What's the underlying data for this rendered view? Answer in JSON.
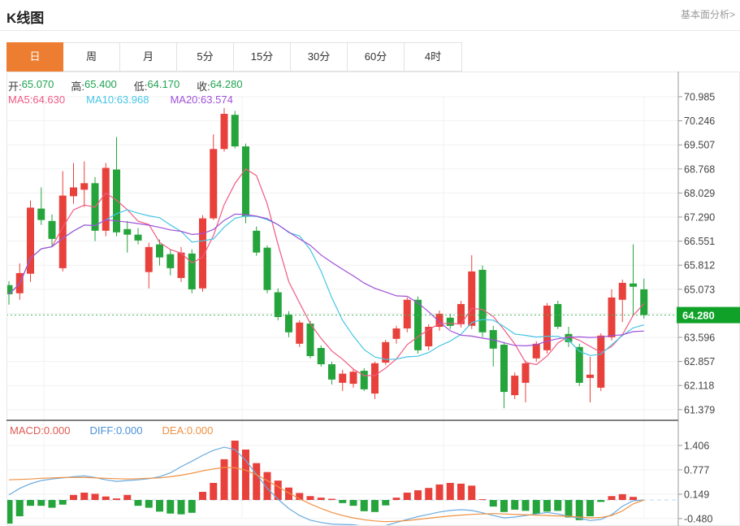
{
  "header": {
    "title": "K线图",
    "link": "基本面分析>"
  },
  "tabs": {
    "items": [
      {
        "name": "day",
        "label": "日",
        "active": true
      },
      {
        "name": "week",
        "label": "周",
        "active": false
      },
      {
        "name": "month",
        "label": "月",
        "active": false
      },
      {
        "name": "5min",
        "label": "5分",
        "active": false
      },
      {
        "name": "15min",
        "label": "15分",
        "active": false
      },
      {
        "name": "30min",
        "label": "30分",
        "active": false
      },
      {
        "name": "60min",
        "label": "60分",
        "active": false
      },
      {
        "name": "4hour",
        "label": "4时",
        "active": false
      }
    ],
    "active_bg": "#ed7d31"
  },
  "legend": {
    "ohlc": [
      {
        "label": "开:",
        "value": "65.070"
      },
      {
        "label": "高:",
        "value": "65.400"
      },
      {
        "label": "低:",
        "value": "64.170"
      },
      {
        "label": "收:",
        "value": "64.280"
      }
    ],
    "ohlc_value_color": "#1fa351",
    "ma": [
      {
        "label": "MA5:",
        "value": "64.630",
        "color": "#f05a82"
      },
      {
        "label": "MA10:",
        "value": "63.968",
        "color": "#45c5e6"
      },
      {
        "label": "MA20:",
        "value": "63.574",
        "color": "#a050d8"
      }
    ],
    "macd": [
      {
        "label": "MACD:",
        "value": "0.000",
        "color": "#e05a52"
      },
      {
        "label": "DIFF:",
        "value": "0.000",
        "color": "#4a90d9"
      },
      {
        "label": "DEA:",
        "value": "0.000",
        "color": "#f09040"
      }
    ]
  },
  "chart_data": {
    "type": "candlestick",
    "convention": "red=up green=down",
    "current_price": "64.280",
    "price_panel": {
      "y_ticks": [
        "70.985",
        "70.246",
        "69.507",
        "68.768",
        "68.029",
        "67.290",
        "66.551",
        "65.812",
        "65.073",
        "",
        "63.596",
        "62.857",
        "62.118",
        "61.379"
      ],
      "y_step": 0.739,
      "ma_periods": [
        5,
        10,
        20
      ],
      "candles_ohlc": [
        [
          65.2,
          65.32,
          64.6,
          64.92
        ],
        [
          64.95,
          65.87,
          64.75,
          65.57
        ],
        [
          65.55,
          67.8,
          65.3,
          67.58
        ],
        [
          67.55,
          68.2,
          67.05,
          67.2
        ],
        [
          67.17,
          67.37,
          66.37,
          66.62
        ],
        [
          65.72,
          68.7,
          65.62,
          67.95
        ],
        [
          67.93,
          68.95,
          67.7,
          68.2
        ],
        [
          68.13,
          69.0,
          67.6,
          68.33
        ],
        [
          68.33,
          68.52,
          66.55,
          66.87
        ],
        [
          66.87,
          68.95,
          66.7,
          68.8
        ],
        [
          68.75,
          69.75,
          66.7,
          66.82
        ],
        [
          66.92,
          67.17,
          66.2,
          66.75
        ],
        [
          66.75,
          66.95,
          66.45,
          66.57
        ],
        [
          65.6,
          66.5,
          65.1,
          66.37
        ],
        [
          66.45,
          66.6,
          65.8,
          66.05
        ],
        [
          66.15,
          66.3,
          65.5,
          65.72
        ],
        [
          65.42,
          66.37,
          65.3,
          66.2
        ],
        [
          66.17,
          66.3,
          64.95,
          65.07
        ],
        [
          65.1,
          67.35,
          65.0,
          67.25
        ],
        [
          67.25,
          69.83,
          67.2,
          69.38
        ],
        [
          69.38,
          70.64,
          69.3,
          70.46
        ],
        [
          70.43,
          70.55,
          69.4,
          69.46
        ],
        [
          69.46,
          69.55,
          67.1,
          67.3
        ],
        [
          66.87,
          67.0,
          66.1,
          66.2
        ],
        [
          66.35,
          66.42,
          64.95,
          65.05
        ],
        [
          64.98,
          65.1,
          64.12,
          64.22
        ],
        [
          64.3,
          64.4,
          63.6,
          63.75
        ],
        [
          63.4,
          64.12,
          63.3,
          64.05
        ],
        [
          64.02,
          64.1,
          62.95,
          63.02
        ],
        [
          63.27,
          63.35,
          62.7,
          62.77
        ],
        [
          62.77,
          62.85,
          62.15,
          62.3
        ],
        [
          62.2,
          62.6,
          61.95,
          62.48
        ],
        [
          62.17,
          62.62,
          62.05,
          62.54
        ],
        [
          62.57,
          62.65,
          61.95,
          62.0
        ],
        [
          61.87,
          62.85,
          61.7,
          62.8
        ],
        [
          62.82,
          63.52,
          62.75,
          63.45
        ],
        [
          63.55,
          63.95,
          63.4,
          63.87
        ],
        [
          63.87,
          64.82,
          63.75,
          64.75
        ],
        [
          64.75,
          64.85,
          63.1,
          63.2
        ],
        [
          63.32,
          64.0,
          63.2,
          63.92
        ],
        [
          63.92,
          64.42,
          63.8,
          64.32
        ],
        [
          64.2,
          64.32,
          63.85,
          63.95
        ],
        [
          64.0,
          64.72,
          63.9,
          64.62
        ],
        [
          63.95,
          66.12,
          63.85,
          65.62
        ],
        [
          65.67,
          65.8,
          63.6,
          63.75
        ],
        [
          63.82,
          63.95,
          62.7,
          63.25
        ],
        [
          63.37,
          63.45,
          61.42,
          61.92
        ],
        [
          61.82,
          62.52,
          61.7,
          62.42
        ],
        [
          62.2,
          62.88,
          61.6,
          62.8
        ],
        [
          62.95,
          63.48,
          62.85,
          63.4
        ],
        [
          63.2,
          64.65,
          63.1,
          64.57
        ],
        [
          64.62,
          64.72,
          63.85,
          63.92
        ],
        [
          63.7,
          63.92,
          63.3,
          63.45
        ],
        [
          63.3,
          63.4,
          62.1,
          62.2
        ],
        [
          62.35,
          63.0,
          61.6,
          62.45
        ],
        [
          62.05,
          63.72,
          61.95,
          63.65
        ],
        [
          63.6,
          65.07,
          63.5,
          64.82
        ],
        [
          64.75,
          65.37,
          64.07,
          65.27
        ],
        [
          65.25,
          66.45,
          64.3,
          65.15
        ],
        [
          65.07,
          65.4,
          64.17,
          64.28
        ]
      ]
    },
    "macd_panel": {
      "y_ticks": [
        "1.406",
        "0.777",
        "0.149",
        "-0.480"
      ],
      "histogram": [
        -0.61,
        -0.42,
        -0.15,
        -0.15,
        -0.2,
        -0.12,
        0.13,
        0.19,
        0.16,
        0.09,
        0.04,
        0.13,
        -0.15,
        -0.2,
        -0.3,
        -0.35,
        -0.37,
        -0.33,
        0.21,
        0.44,
        1.05,
        1.53,
        1.3,
        0.95,
        0.72,
        0.5,
        0.32,
        0.18,
        0.1,
        0.06,
        0.03,
        -0.08,
        -0.15,
        -0.29,
        -0.31,
        -0.14,
        0.06,
        0.19,
        0.25,
        0.31,
        0.4,
        0.44,
        0.42,
        0.37,
        0.02,
        -0.17,
        -0.31,
        -0.25,
        -0.28,
        -0.36,
        -0.3,
        -0.28,
        -0.45,
        -0.52,
        -0.42,
        -0.05,
        0.1,
        0.15,
        0.08,
        0.0
      ],
      "diff": [
        0.13,
        0.3,
        0.42,
        0.5,
        0.54,
        0.57,
        0.6,
        0.62,
        0.58,
        0.52,
        0.48,
        0.5,
        0.52,
        0.55,
        0.6,
        0.7,
        0.86,
        1.0,
        1.15,
        1.28,
        1.36,
        1.3,
        1.02,
        0.66,
        0.3,
        0.02,
        -0.22,
        -0.4,
        -0.52,
        -0.58,
        -0.62,
        -0.63,
        -0.64,
        -0.68,
        -0.72,
        -0.66,
        -0.58,
        -0.5,
        -0.43,
        -0.37,
        -0.31,
        -0.27,
        -0.25,
        -0.27,
        -0.33,
        -0.4,
        -0.46,
        -0.44,
        -0.4,
        -0.36,
        -0.32,
        -0.36,
        -0.42,
        -0.47,
        -0.53,
        -0.5,
        -0.38,
        -0.16,
        -0.02,
        0.0
      ],
      "dea": [
        0.52,
        0.53,
        0.54,
        0.56,
        0.57,
        0.58,
        0.58,
        0.58,
        0.57,
        0.56,
        0.55,
        0.54,
        0.55,
        0.56,
        0.57,
        0.6,
        0.64,
        0.69,
        0.75,
        0.8,
        0.84,
        0.83,
        0.77,
        0.65,
        0.5,
        0.34,
        0.18,
        0.03,
        -0.1,
        -0.22,
        -0.32,
        -0.4,
        -0.46,
        -0.51,
        -0.54,
        -0.56,
        -0.55,
        -0.53,
        -0.5,
        -0.47,
        -0.44,
        -0.41,
        -0.39,
        -0.37,
        -0.36,
        -0.35,
        -0.36,
        -0.37,
        -0.38,
        -0.39,
        -0.4,
        -0.41,
        -0.42,
        -0.44,
        -0.46,
        -0.45,
        -0.4,
        -0.28,
        -0.1,
        0.0
      ]
    },
    "colors": {
      "up": "#e8413c",
      "down": "#25a43c",
      "price_badge": "#10a228",
      "price_dotted_line": "#43b85c",
      "ma5": "#f05a82",
      "ma10": "#45c5e6",
      "ma20": "#a050d8",
      "diff_line": "#6aabdf",
      "dea_line": "#f09040",
      "grid": "#f1f1f1",
      "axis": "#999999",
      "divider": "#333333",
      "tick_text": "#444444",
      "zero_dashed": "#b9d9f0"
    }
  }
}
